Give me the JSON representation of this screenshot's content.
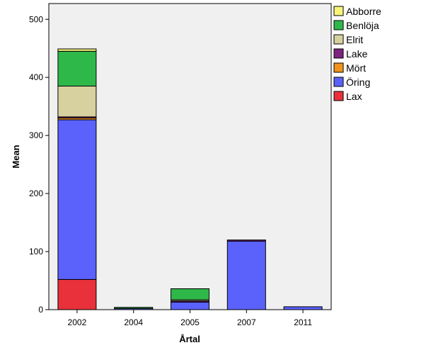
{
  "chart_data": {
    "type": "bar",
    "stacked": true,
    "xlabel": "Årtal",
    "ylabel": "Mean",
    "categories": [
      "2002",
      "2004",
      "2005",
      "2007",
      "2011"
    ],
    "ylim": [
      0,
      520
    ],
    "yticks": [
      0,
      100,
      200,
      300,
      400,
      500
    ],
    "grid": false,
    "legend_position": "right",
    "series": [
      {
        "name": "Lax",
        "color": "#e8313a",
        "values": [
          52,
          0,
          0,
          0,
          0
        ]
      },
      {
        "name": "Öring",
        "color": "#5b62fb",
        "values": [
          275,
          2,
          13,
          118,
          5
        ]
      },
      {
        "name": "Mört",
        "color": "#f0941d",
        "values": [
          3,
          0,
          0,
          0,
          0
        ]
      },
      {
        "name": "Lake",
        "color": "#7d237f",
        "values": [
          2,
          0,
          2,
          2,
          0
        ]
      },
      {
        "name": "Elrit",
        "color": "#d6d19e",
        "values": [
          53,
          0,
          2,
          0,
          0
        ]
      },
      {
        "name": "Benlöja",
        "color": "#2fb84a",
        "values": [
          60,
          2,
          19,
          0,
          0
        ]
      },
      {
        "name": "Abborre",
        "color": "#f8f47a",
        "values": [
          4,
          0,
          0,
          0,
          0
        ]
      }
    ],
    "legend_order": [
      "Abborre",
      "Benlöja",
      "Elrit",
      "Lake",
      "Mört",
      "Öring",
      "Lax"
    ]
  }
}
